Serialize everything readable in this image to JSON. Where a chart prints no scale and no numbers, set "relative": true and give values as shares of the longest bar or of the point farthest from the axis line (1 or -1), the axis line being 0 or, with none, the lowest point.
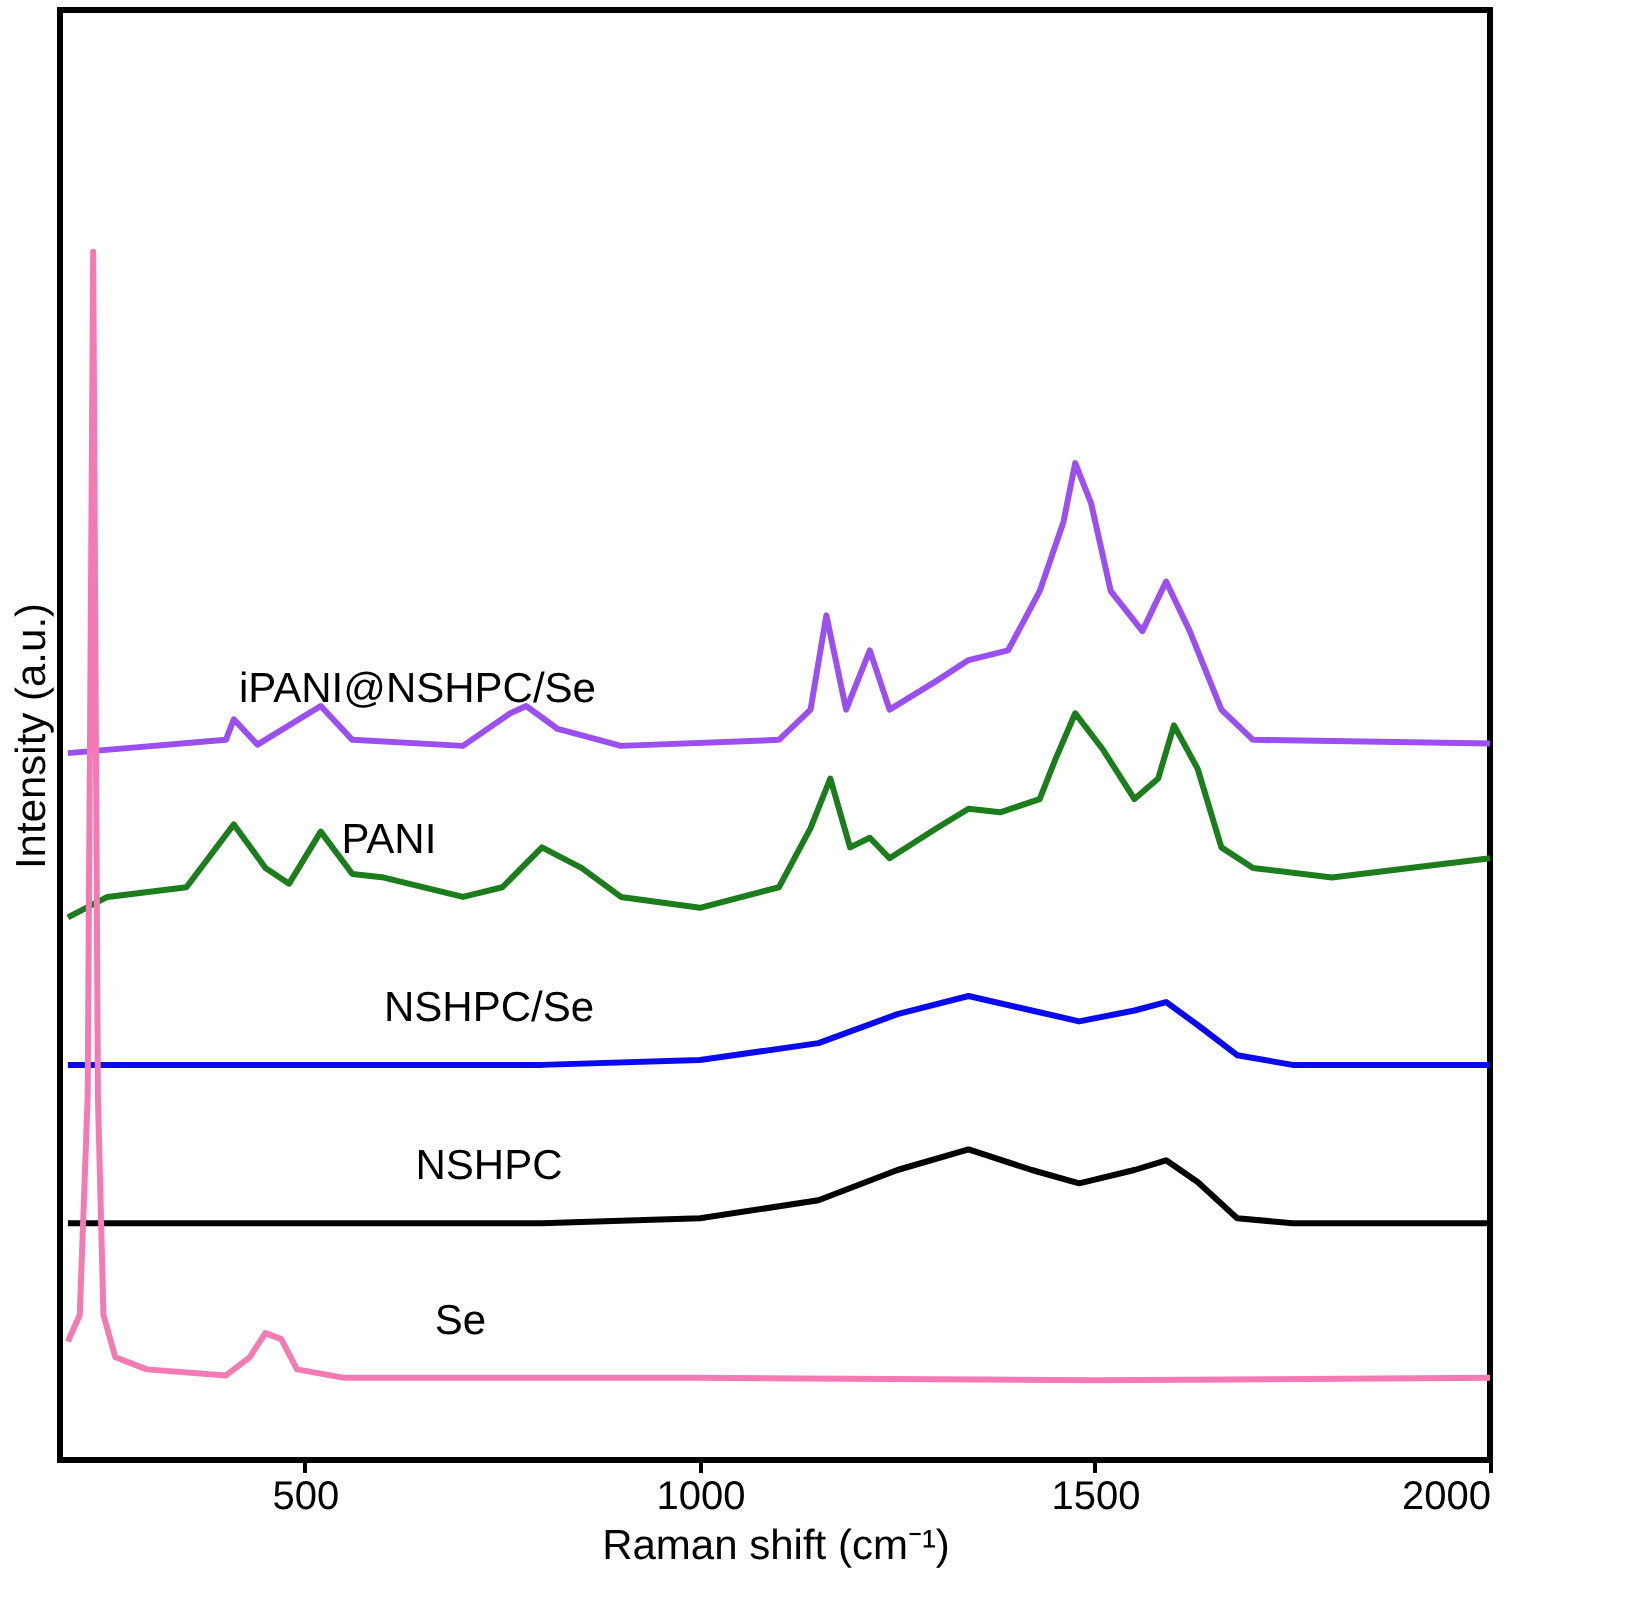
{
  "chart_data": {
    "type": "line",
    "xlabel": "Raman shift (cm⁻¹)",
    "ylabel": "Intensity (a.u.)",
    "relative": true,
    "xlim": [
      190,
      2000
    ],
    "xticks": [
      500,
      1000,
      1500,
      2000
    ],
    "tick_labels": "x",
    "grid": false,
    "marker": "none",
    "line_style": "solid",
    "series": [
      {
        "name": "iPANI@NSHPC/Se",
        "color": "#9b4ff0",
        "x": [
          200,
          400,
          410,
          440,
          520,
          560,
          700,
          760,
          780,
          820,
          900,
          1100,
          1140,
          1160,
          1185,
          1215,
          1240,
          1300,
          1340,
          1390,
          1430,
          1460,
          1475,
          1495,
          1520,
          1560,
          1590,
          1620,
          1660,
          1700,
          2000
        ],
        "values": [
          0.585,
          0.596,
          0.613,
          0.592,
          0.624,
          0.596,
          0.591,
          0.618,
          0.624,
          0.605,
          0.591,
          0.596,
          0.621,
          0.699,
          0.621,
          0.67,
          0.621,
          0.645,
          0.662,
          0.67,
          0.719,
          0.776,
          0.825,
          0.792,
          0.719,
          0.686,
          0.727,
          0.686,
          0.621,
          0.596,
          0.593
        ]
      },
      {
        "name": "PANI",
        "color": "#1b7d1b",
        "x": [
          200,
          250,
          350,
          410,
          450,
          480,
          520,
          560,
          600,
          700,
          750,
          800,
          850,
          900,
          1000,
          1100,
          1140,
          1165,
          1190,
          1215,
          1240,
          1300,
          1340,
          1380,
          1430,
          1450,
          1475,
          1510,
          1550,
          1580,
          1600,
          1630,
          1660,
          1700,
          1800,
          2000
        ],
        "values": [
          0.449,
          0.466,
          0.474,
          0.526,
          0.49,
          0.477,
          0.52,
          0.485,
          0.482,
          0.466,
          0.474,
          0.507,
          0.49,
          0.466,
          0.457,
          0.474,
          0.523,
          0.564,
          0.507,
          0.515,
          0.498,
          0.523,
          0.539,
          0.536,
          0.547,
          0.58,
          0.618,
          0.588,
          0.547,
          0.564,
          0.608,
          0.572,
          0.507,
          0.49,
          0.482,
          0.498
        ]
      },
      {
        "name": "NSHPC/Se",
        "color": "#0a0af0",
        "x": [
          200,
          800,
          1000,
          1150,
          1250,
          1340,
          1420,
          1480,
          1550,
          1590,
          1630,
          1680,
          1750,
          2000
        ],
        "values": [
          0.327,
          0.327,
          0.331,
          0.345,
          0.369,
          0.384,
          0.372,
          0.363,
          0.372,
          0.379,
          0.36,
          0.335,
          0.327,
          0.327
        ]
      },
      {
        "name": "NSHPC",
        "color": "#000000",
        "x": [
          200,
          800,
          1000,
          1150,
          1250,
          1340,
          1420,
          1480,
          1550,
          1590,
          1630,
          1680,
          1750,
          2000
        ],
        "values": [
          0.196,
          0.196,
          0.2,
          0.215,
          0.24,
          0.257,
          0.24,
          0.229,
          0.24,
          0.248,
          0.23,
          0.2,
          0.196,
          0.196
        ]
      },
      {
        "name": "Se",
        "color": "#f47ab4",
        "x": [
          200,
          215,
          225,
          232,
          238,
          245,
          260,
          300,
          400,
          430,
          450,
          470,
          490,
          550,
          700,
          1000,
          1500,
          2000
        ],
        "values": [
          0.098,
          0.12,
          0.3,
          1.0,
          0.3,
          0.12,
          0.085,
          0.075,
          0.07,
          0.085,
          0.105,
          0.1,
          0.075,
          0.068,
          0.068,
          0.068,
          0.066,
          0.068
        ]
      }
    ]
  }
}
